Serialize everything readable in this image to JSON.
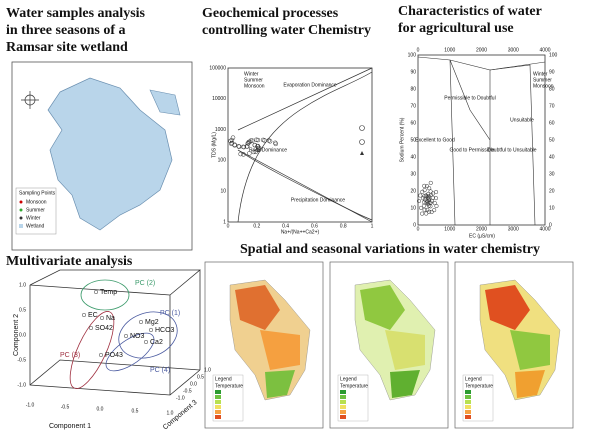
{
  "panels": {
    "map": {
      "title_lines": [
        "Water samples analysis",
        "in three seasons of a",
        "Ramsar site wetland"
      ],
      "legend_title": "Sampling Points",
      "legend": [
        "Monsoon",
        "Summer",
        "Winter",
        "Wetland"
      ]
    },
    "gibbs": {
      "title_lines": [
        "Geochemical processes",
        "controlling water Chemistry"
      ],
      "y_label": "TDS (Mg/L)",
      "x_label": "Na+/(Na++Ca2+)",
      "yticks": [
        "100000",
        "10000",
        "1000",
        "100",
        "10",
        "1"
      ],
      "xticks": [
        "0",
        "0.2",
        "0.4",
        "0.6",
        "0.8",
        "1"
      ],
      "zones": [
        "Evaporation Dominance",
        "Rock Dominance",
        "Precipitation Dominance"
      ],
      "legend": [
        "Winter",
        "Summer",
        "Monsoon"
      ]
    },
    "agri": {
      "title_lines": [
        "Characteristics of water",
        "for agricultural use"
      ],
      "y_label": "Sodium Percent (%)",
      "x_label": "EC (µS/cm)",
      "yticks": [
        "100",
        "90",
        "80",
        "70",
        "60",
        "50",
        "40",
        "30",
        "20",
        "10",
        "0"
      ],
      "xticks": [
        "0",
        "1000",
        "2000",
        "3000",
        "4000"
      ],
      "zones": [
        "Excellent to Good",
        "Permissible to Doubtful",
        "Good to Permissible",
        "Doubtful to Unsuitable",
        "Unsuitable"
      ],
      "legend": [
        "Winter",
        "Summer",
        "Monsoon"
      ]
    },
    "pca": {
      "title": "Multivariate analysis",
      "axes": [
        "Component 1",
        "Component 2",
        "Component 3"
      ],
      "ticks": [
        "-1.0",
        "-0.5",
        "0.0",
        "0.5",
        "1.0"
      ],
      "groups": [
        "PC (1)",
        "PC (2)",
        "PC (3)",
        "PC (4)"
      ],
      "variables": [
        "Temp",
        "EC",
        "Na",
        "Mg2",
        "HCO3",
        "SO42",
        "NO3",
        "Ca2",
        "PO43"
      ]
    },
    "spatial": {
      "title": "Spatial and seasonal variations in water chemistry",
      "legend_title": "Legend",
      "legend_sub": "Temperature"
    }
  }
}
